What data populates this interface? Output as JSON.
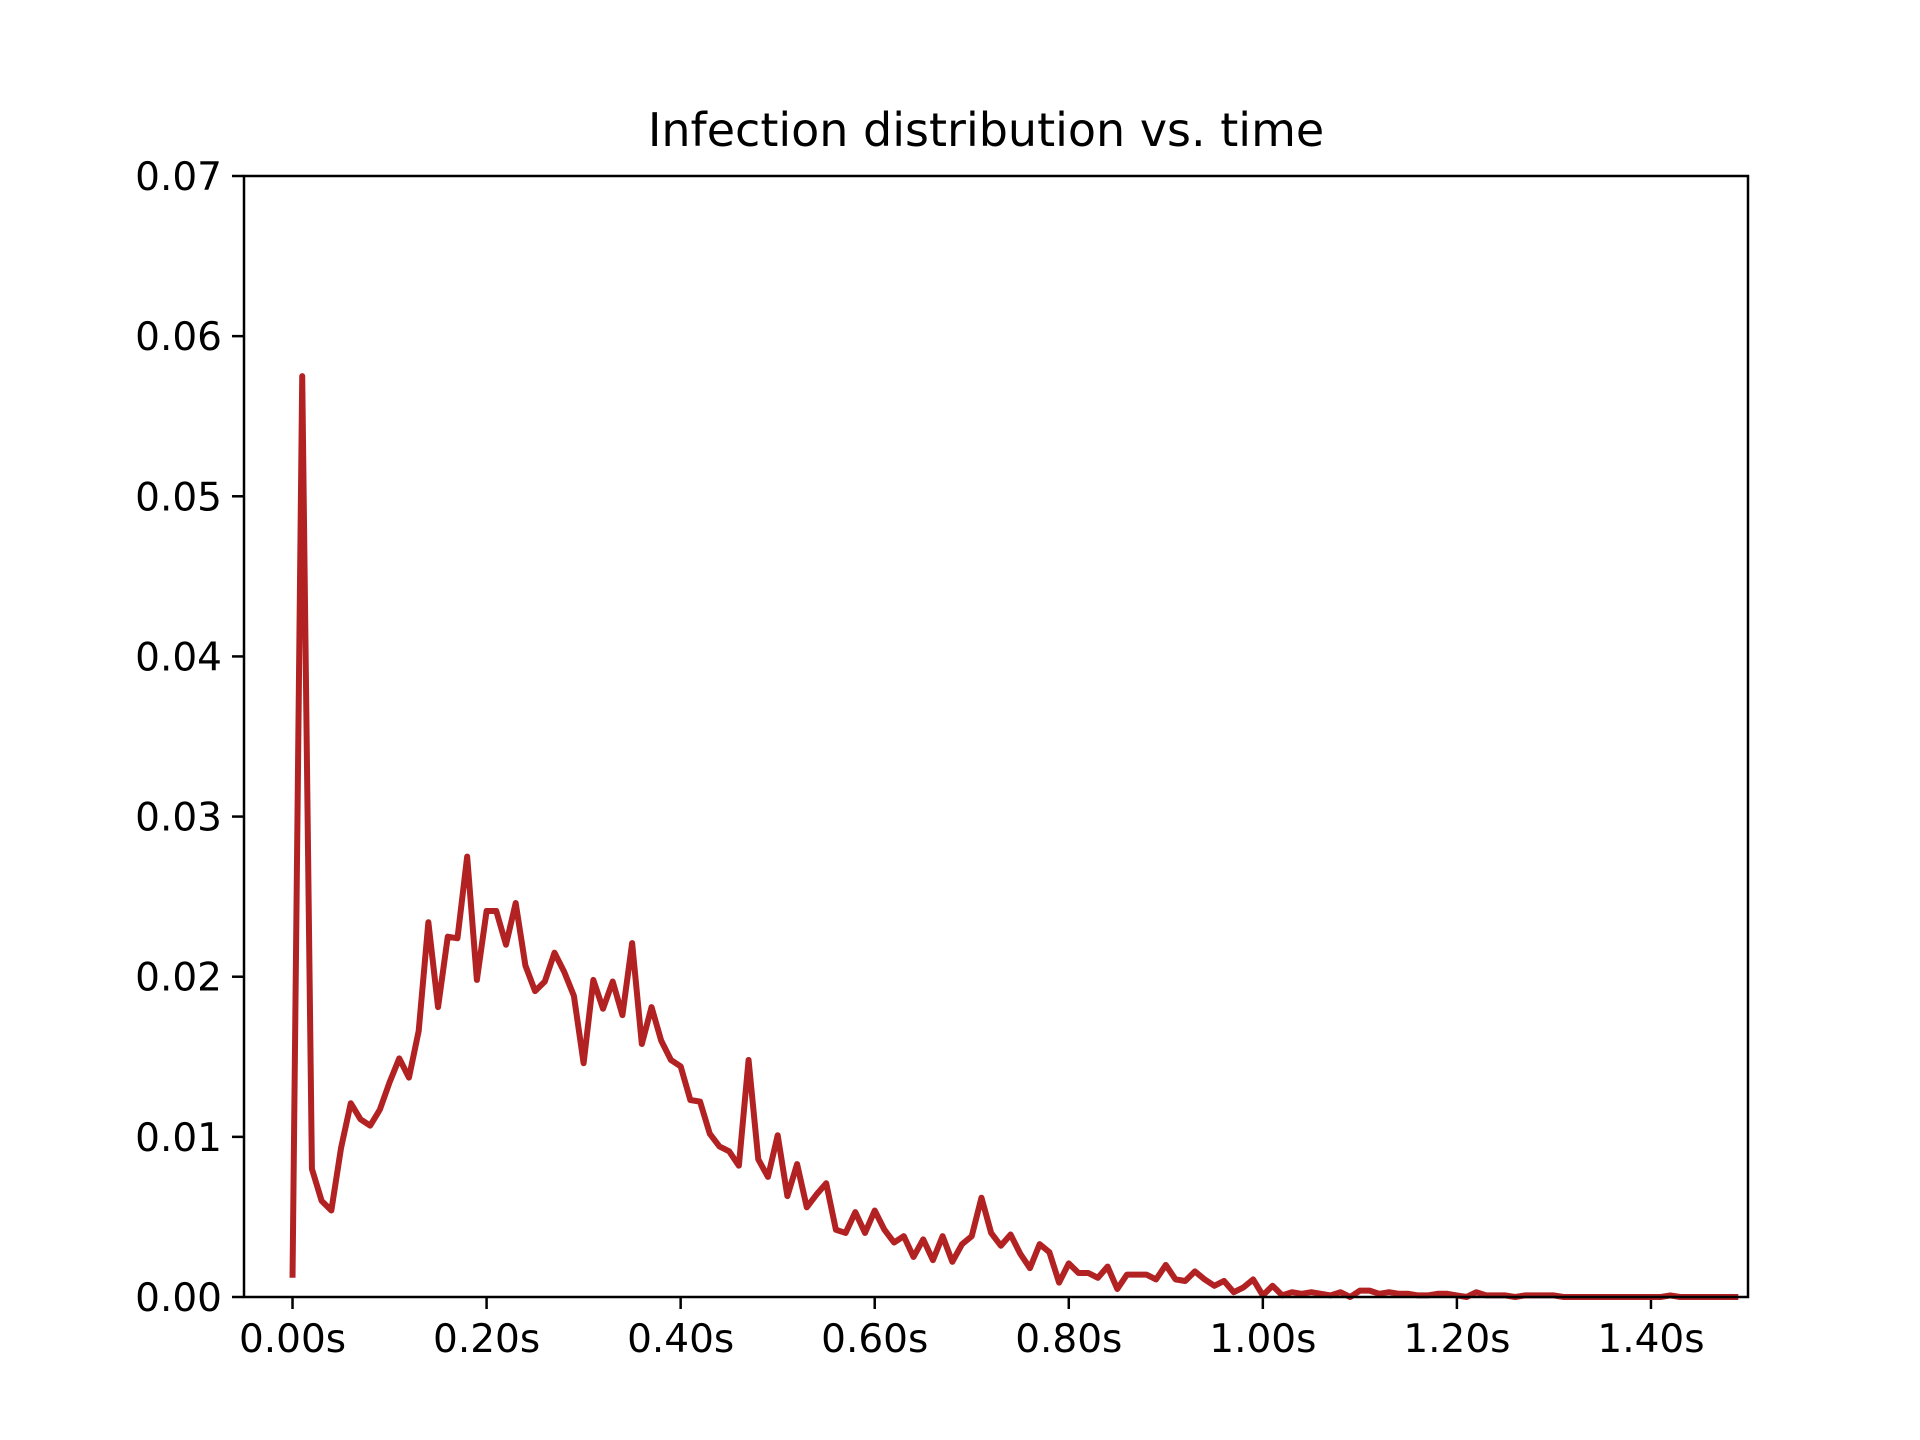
{
  "chart_data": {
    "type": "line",
    "title": "Infection distribution vs. time",
    "xlabel": "",
    "ylabel": "",
    "xlim": [
      -0.05,
      1.5
    ],
    "ylim": [
      0,
      0.07
    ],
    "grid": false,
    "color": "#b22222",
    "x_ticks": [
      {
        "value": 0.0,
        "label": "0.00s"
      },
      {
        "value": 0.2,
        "label": "0.20s"
      },
      {
        "value": 0.4,
        "label": "0.40s"
      },
      {
        "value": 0.6,
        "label": "0.60s"
      },
      {
        "value": 0.8,
        "label": "0.80s"
      },
      {
        "value": 1.0,
        "label": "1.00s"
      },
      {
        "value": 1.2,
        "label": "1.20s"
      },
      {
        "value": 1.4,
        "label": "1.40s"
      }
    ],
    "y_ticks": [
      {
        "value": 0.0,
        "label": "0.00"
      },
      {
        "value": 0.01,
        "label": "0.01"
      },
      {
        "value": 0.02,
        "label": "0.02"
      },
      {
        "value": 0.03,
        "label": "0.03"
      },
      {
        "value": 0.04,
        "label": "0.04"
      },
      {
        "value": 0.05,
        "label": "0.05"
      },
      {
        "value": 0.06,
        "label": "0.06"
      },
      {
        "value": 0.07,
        "label": "0.07"
      }
    ],
    "series": [
      {
        "x": [
          0.0,
          0.01,
          0.02,
          0.03,
          0.04,
          0.05,
          0.06,
          0.07,
          0.08,
          0.09,
          0.1,
          0.11,
          0.12,
          0.13,
          0.14,
          0.15,
          0.16,
          0.17,
          0.18,
          0.19,
          0.2,
          0.21,
          0.22,
          0.23,
          0.24,
          0.25,
          0.26,
          0.27,
          0.28,
          0.29,
          0.3,
          0.31,
          0.32,
          0.33,
          0.34,
          0.35,
          0.36,
          0.37,
          0.38,
          0.39,
          0.4,
          0.41,
          0.42,
          0.43,
          0.44,
          0.45,
          0.46,
          0.47,
          0.48,
          0.49,
          0.5,
          0.51,
          0.52,
          0.53,
          0.54,
          0.55,
          0.56,
          0.57,
          0.58,
          0.59,
          0.6,
          0.61,
          0.62,
          0.63,
          0.64,
          0.65,
          0.66,
          0.67,
          0.68,
          0.69,
          0.7,
          0.71,
          0.72,
          0.73,
          0.74,
          0.75,
          0.76,
          0.77,
          0.78,
          0.79,
          0.8,
          0.81,
          0.82,
          0.83,
          0.84,
          0.85,
          0.86,
          0.87,
          0.88,
          0.89,
          0.9,
          0.91,
          0.92,
          0.93,
          0.94,
          0.95,
          0.96,
          0.97,
          0.98,
          0.99,
          1.0,
          1.01,
          1.02,
          1.03,
          1.04,
          1.05,
          1.06,
          1.07,
          1.08,
          1.09,
          1.1,
          1.11,
          1.12,
          1.13,
          1.14,
          1.15,
          1.16,
          1.17,
          1.18,
          1.19,
          1.2,
          1.21,
          1.22,
          1.23,
          1.24,
          1.25,
          1.26,
          1.27,
          1.28,
          1.29,
          1.3,
          1.31,
          1.32,
          1.33,
          1.34,
          1.35,
          1.36,
          1.37,
          1.38,
          1.39,
          1.4,
          1.41,
          1.42,
          1.43,
          1.44,
          1.45,
          1.46,
          1.47,
          1.48,
          1.49
        ],
        "y": [
          0.0012,
          0.0575,
          0.008,
          0.006,
          0.0054,
          0.0093,
          0.0121,
          0.0111,
          0.0107,
          0.0117,
          0.0134,
          0.0149,
          0.0137,
          0.0166,
          0.0234,
          0.0181,
          0.0225,
          0.0224,
          0.0275,
          0.0198,
          0.0241,
          0.0241,
          0.022,
          0.0246,
          0.0207,
          0.0191,
          0.0197,
          0.0215,
          0.0203,
          0.0188,
          0.0146,
          0.0198,
          0.018,
          0.0197,
          0.0176,
          0.0221,
          0.0158,
          0.0181,
          0.016,
          0.0148,
          0.0144,
          0.0123,
          0.0122,
          0.0102,
          0.0094,
          0.0091,
          0.0082,
          0.0148,
          0.0086,
          0.0075,
          0.0101,
          0.0063,
          0.0083,
          0.0056,
          0.0064,
          0.0071,
          0.0042,
          0.004,
          0.0053,
          0.004,
          0.0054,
          0.0042,
          0.0034,
          0.0038,
          0.0025,
          0.0036,
          0.0023,
          0.0038,
          0.0022,
          0.0033,
          0.0038,
          0.0062,
          0.004,
          0.0032,
          0.0039,
          0.0027,
          0.0018,
          0.0033,
          0.0028,
          0.0009,
          0.0021,
          0.0015,
          0.0015,
          0.0012,
          0.0019,
          0.0005,
          0.0014,
          0.0014,
          0.0014,
          0.0011,
          0.002,
          0.0011,
          0.001,
          0.0016,
          0.0011,
          0.0007,
          0.001,
          0.0003,
          0.0006,
          0.0011,
          0.0001,
          0.0007,
          0.0001,
          0.0003,
          0.0002,
          0.0003,
          0.0002,
          0.0001,
          0.0003,
          0.0,
          0.0004,
          0.0004,
          0.0002,
          0.0003,
          0.0002,
          0.0002,
          0.0001,
          0.0001,
          0.0002,
          0.0002,
          0.0001,
          0.0,
          0.0003,
          0.0001,
          0.0001,
          0.0001,
          0.0,
          0.0001,
          0.0001,
          0.0001,
          0.0001,
          0.0,
          0.0,
          0.0,
          0.0,
          0.0,
          0.0,
          0.0,
          0.0,
          0.0,
          0.0,
          0.0,
          0.0001,
          0.0,
          0.0,
          0.0,
          0.0,
          0.0,
          0.0,
          0.0
        ]
      }
    ]
  }
}
